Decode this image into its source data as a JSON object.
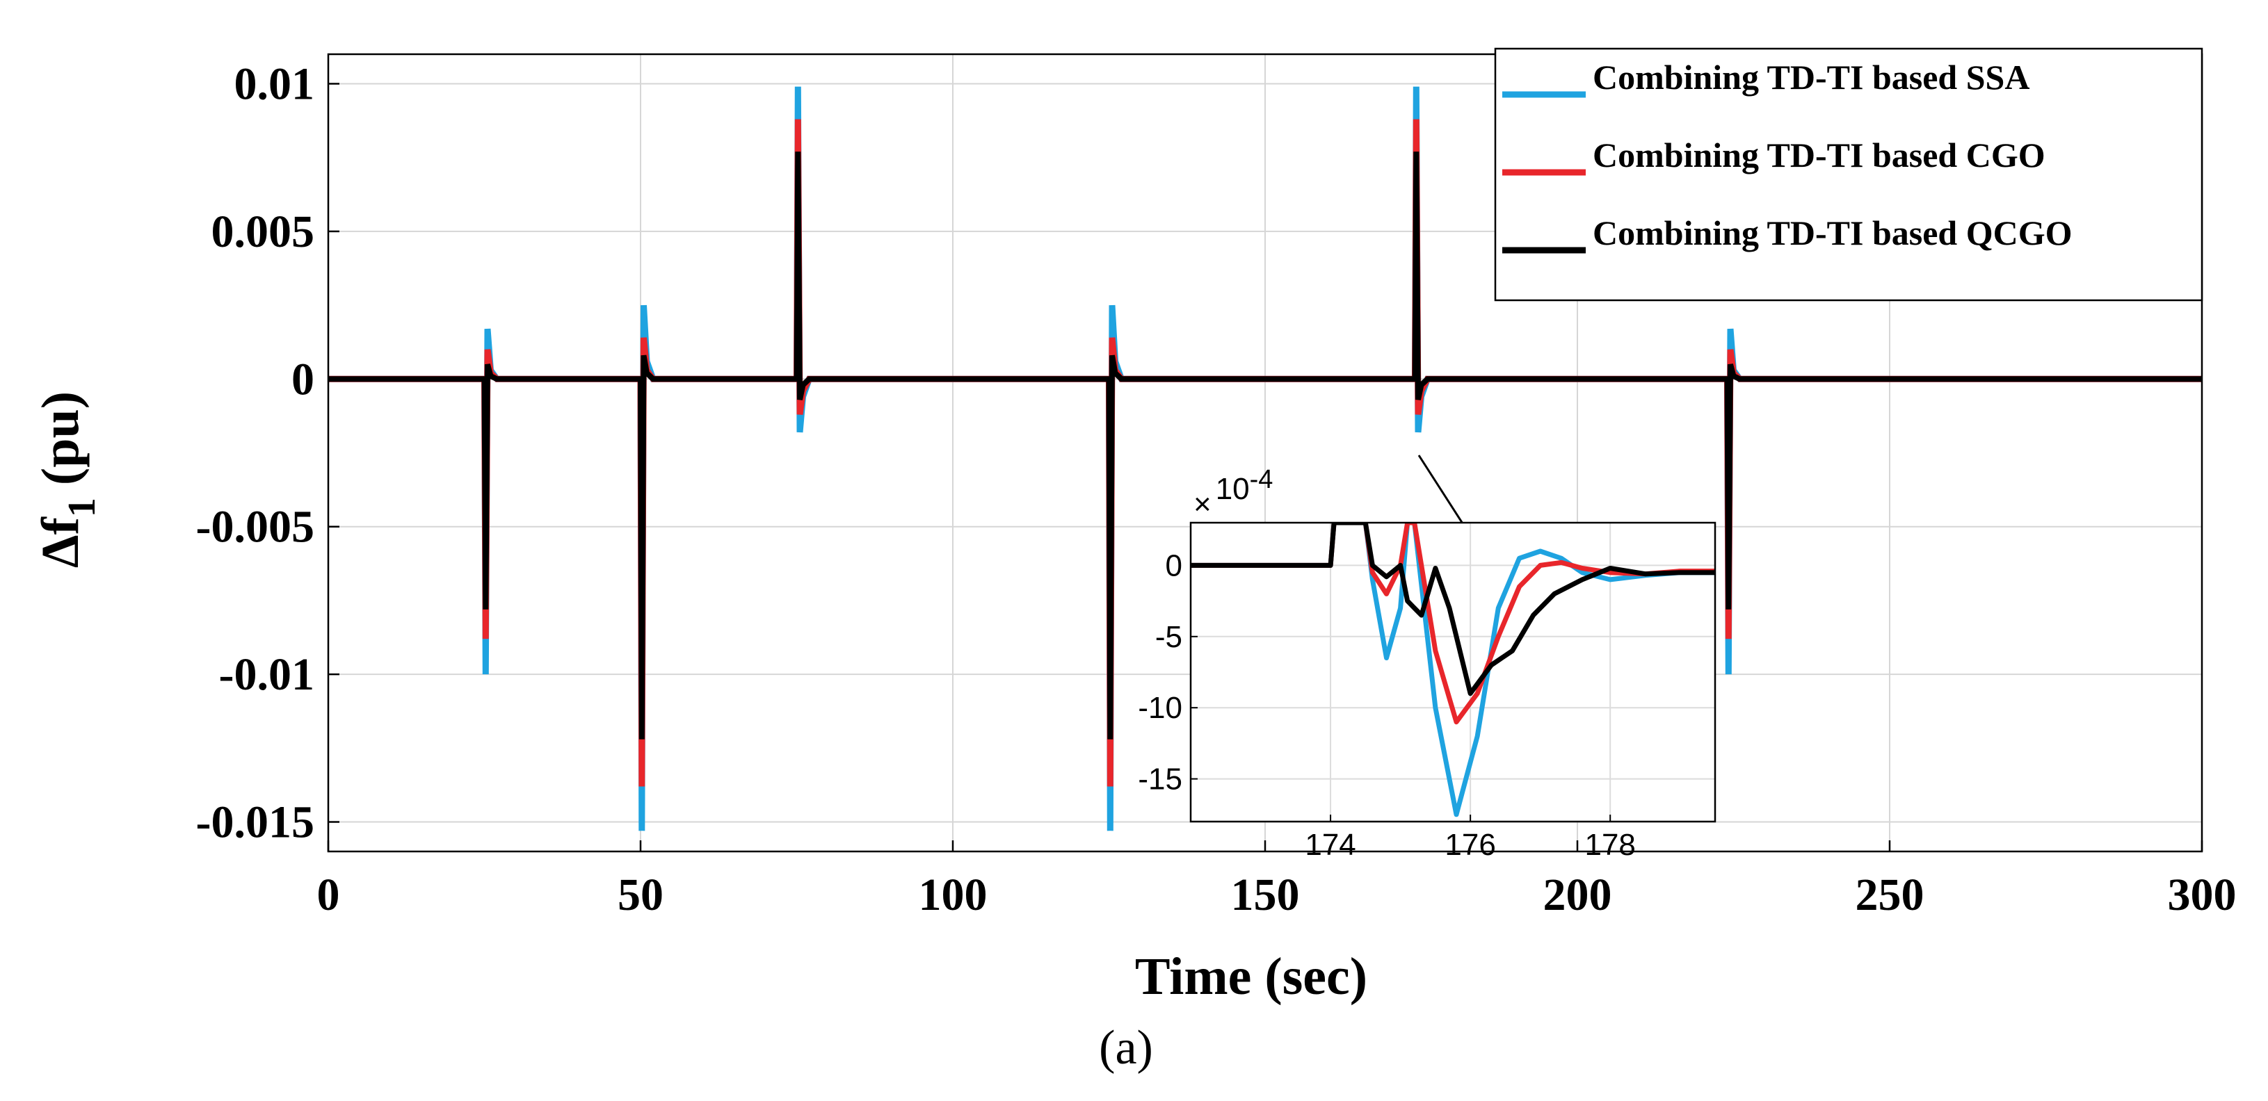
{
  "chart_data": {
    "type": "line",
    "caption": "(a)",
    "xlabel": "Time (sec)",
    "ylabel": "Δf",
    "ylabel_sub": "1",
    "ylabel_unit": "(pu)",
    "xlim": [
      0,
      300
    ],
    "ylim": [
      -0.016,
      0.011
    ],
    "xticks": [
      0,
      50,
      100,
      150,
      200,
      250,
      300
    ],
    "xtick_labels": [
      "0",
      "50",
      "100",
      "150",
      "200",
      "250",
      "300"
    ],
    "yticks": [
      0.01,
      0.005,
      0,
      -0.005,
      -0.01,
      -0.015
    ],
    "ytick_labels": [
      "0.01",
      "0.005",
      "0",
      "-0.005",
      "-0.01",
      "-0.015"
    ],
    "grid": true,
    "legend_position": "top-right",
    "series": [
      {
        "name": "Combining TD-TI based SSA",
        "color": "#1fa3e0",
        "points": [
          [
            0,
            0
          ],
          [
            25,
            0
          ],
          [
            25.2,
            -0.01
          ],
          [
            25.5,
            0.0017
          ],
          [
            26,
            0.0003
          ],
          [
            27,
            0
          ],
          [
            50,
            0
          ],
          [
            50.2,
            -0.0153
          ],
          [
            50.5,
            0.0025
          ],
          [
            51,
            0.0006
          ],
          [
            52,
            0
          ],
          [
            75,
            0
          ],
          [
            75.2,
            0.0099
          ],
          [
            75.5,
            -0.0018
          ],
          [
            76,
            -0.0006
          ],
          [
            77,
            0
          ],
          [
            125,
            0
          ],
          [
            125.2,
            -0.0153
          ],
          [
            125.5,
            0.0025
          ],
          [
            126,
            0.0006
          ],
          [
            127,
            0
          ],
          [
            174,
            0
          ],
          [
            174.2,
            0.0099
          ],
          [
            174.5,
            -0.0018
          ],
          [
            175,
            -0.0006
          ],
          [
            176,
            0
          ],
          [
            224,
            0
          ],
          [
            224.2,
            -0.01
          ],
          [
            224.5,
            0.0017
          ],
          [
            225,
            0.0003
          ],
          [
            226,
            0
          ],
          [
            300,
            0
          ]
        ]
      },
      {
        "name": "Combining TD-TI based CGO",
        "color": "#e8262b",
        "points": [
          [
            0,
            0
          ],
          [
            25,
            0
          ],
          [
            25.2,
            -0.0088
          ],
          [
            25.5,
            0.001
          ],
          [
            26,
            0.0002
          ],
          [
            27,
            0
          ],
          [
            50,
            0
          ],
          [
            50.2,
            -0.0138
          ],
          [
            50.5,
            0.0014
          ],
          [
            51,
            0.0003
          ],
          [
            52,
            0
          ],
          [
            75,
            0
          ],
          [
            75.2,
            0.0088
          ],
          [
            75.5,
            -0.0012
          ],
          [
            76,
            -0.0004
          ],
          [
            77,
            0
          ],
          [
            125,
            0
          ],
          [
            125.2,
            -0.0138
          ],
          [
            125.5,
            0.0014
          ],
          [
            126,
            0.0003
          ],
          [
            127,
            0
          ],
          [
            174,
            0
          ],
          [
            174.2,
            0.0088
          ],
          [
            174.5,
            -0.0012
          ],
          [
            175,
            -0.0004
          ],
          [
            176,
            0
          ],
          [
            224,
            0
          ],
          [
            224.2,
            -0.0088
          ],
          [
            224.5,
            0.001
          ],
          [
            225,
            0.0002
          ],
          [
            226,
            0
          ],
          [
            300,
            0
          ]
        ]
      },
      {
        "name": "Combining TD-TI based QCGO",
        "color": "#000000",
        "points": [
          [
            0,
            0
          ],
          [
            25,
            0
          ],
          [
            25.2,
            -0.0078
          ],
          [
            25.5,
            0.0005
          ],
          [
            26,
            0.0001
          ],
          [
            27,
            0
          ],
          [
            50,
            0
          ],
          [
            50.2,
            -0.0122
          ],
          [
            50.5,
            0.0008
          ],
          [
            51,
            0.0002
          ],
          [
            52,
            0
          ],
          [
            75,
            0
          ],
          [
            75.2,
            0.0077
          ],
          [
            75.5,
            -0.0007
          ],
          [
            76,
            -0.0002
          ],
          [
            77,
            0
          ],
          [
            125,
            0
          ],
          [
            125.2,
            -0.0122
          ],
          [
            125.5,
            0.0008
          ],
          [
            126,
            0.0002
          ],
          [
            127,
            0
          ],
          [
            174,
            0
          ],
          [
            174.2,
            0.0077
          ],
          [
            174.5,
            -0.0007
          ],
          [
            175,
            -0.0002
          ],
          [
            176,
            0
          ],
          [
            224,
            0
          ],
          [
            224.2,
            -0.0078
          ],
          [
            224.5,
            0.0005
          ],
          [
            225,
            0.0001
          ],
          [
            226,
            0
          ],
          [
            300,
            0
          ]
        ]
      }
    ],
    "inset": {
      "scale_label": "×",
      "exponent_label": "10",
      "exponent_power": "-4",
      "xlim": [
        172,
        179.5
      ],
      "ylim": [
        -18,
        3
      ],
      "xticks": [
        174,
        176,
        178
      ],
      "xtick_labels": [
        "174",
        "176",
        "178"
      ],
      "yticks": [
        0,
        -5,
        -10,
        -15
      ],
      "ytick_labels": [
        "0",
        "-5",
        "-10",
        "-15"
      ],
      "series": [
        {
          "name": "Combining TD-TI based SSA",
          "color": "#1fa3e0",
          "points": [
            [
              172,
              0
            ],
            [
              174,
              0
            ],
            [
              174.05,
              3
            ],
            [
              174.5,
              3
            ],
            [
              174.6,
              -1
            ],
            [
              174.8,
              -6.5
            ],
            [
              175,
              -3
            ],
            [
              175.1,
              3
            ],
            [
              175.2,
              3
            ],
            [
              175.5,
              -10
            ],
            [
              175.8,
              -17.5
            ],
            [
              176.1,
              -12
            ],
            [
              176.4,
              -3
            ],
            [
              176.7,
              0.5
            ],
            [
              177,
              1
            ],
            [
              177.3,
              0.5
            ],
            [
              177.6,
              -0.5
            ],
            [
              178,
              -1
            ],
            [
              178.5,
              -0.7
            ],
            [
              179,
              -0.5
            ],
            [
              179.5,
              -0.5
            ]
          ]
        },
        {
          "name": "Combining TD-TI based CGO",
          "color": "#e8262b",
          "points": [
            [
              172,
              0
            ],
            [
              174,
              0
            ],
            [
              174.05,
              3
            ],
            [
              174.5,
              3
            ],
            [
              174.6,
              -0.5
            ],
            [
              174.8,
              -2
            ],
            [
              175,
              0
            ],
            [
              175.1,
              3
            ],
            [
              175.2,
              3
            ],
            [
              175.5,
              -6
            ],
            [
              175.8,
              -11
            ],
            [
              176.1,
              -9
            ],
            [
              176.4,
              -5
            ],
            [
              176.7,
              -1.5
            ],
            [
              177,
              0
            ],
            [
              177.3,
              0.2
            ],
            [
              177.6,
              -0.2
            ],
            [
              178,
              -0.5
            ],
            [
              178.5,
              -0.6
            ],
            [
              179,
              -0.4
            ],
            [
              179.5,
              -0.4
            ]
          ]
        },
        {
          "name": "Combining TD-TI based QCGO",
          "color": "#000000",
          "points": [
            [
              172,
              0
            ],
            [
              174,
              0
            ],
            [
              174.05,
              3
            ],
            [
              174.5,
              3
            ],
            [
              174.6,
              0
            ],
            [
              174.8,
              -0.8
            ],
            [
              175,
              0
            ],
            [
              175.1,
              -2.5
            ],
            [
              175.3,
              -3.5
            ],
            [
              175.5,
              -0.2
            ],
            [
              175.7,
              -3
            ],
            [
              176,
              -9
            ],
            [
              176.3,
              -7
            ],
            [
              176.6,
              -6
            ],
            [
              176.9,
              -3.5
            ],
            [
              177.2,
              -2
            ],
            [
              177.6,
              -1
            ],
            [
              178,
              -0.2
            ],
            [
              178.5,
              -0.6
            ],
            [
              179,
              -0.5
            ],
            [
              179.5,
              -0.5
            ]
          ]
        }
      ]
    }
  }
}
